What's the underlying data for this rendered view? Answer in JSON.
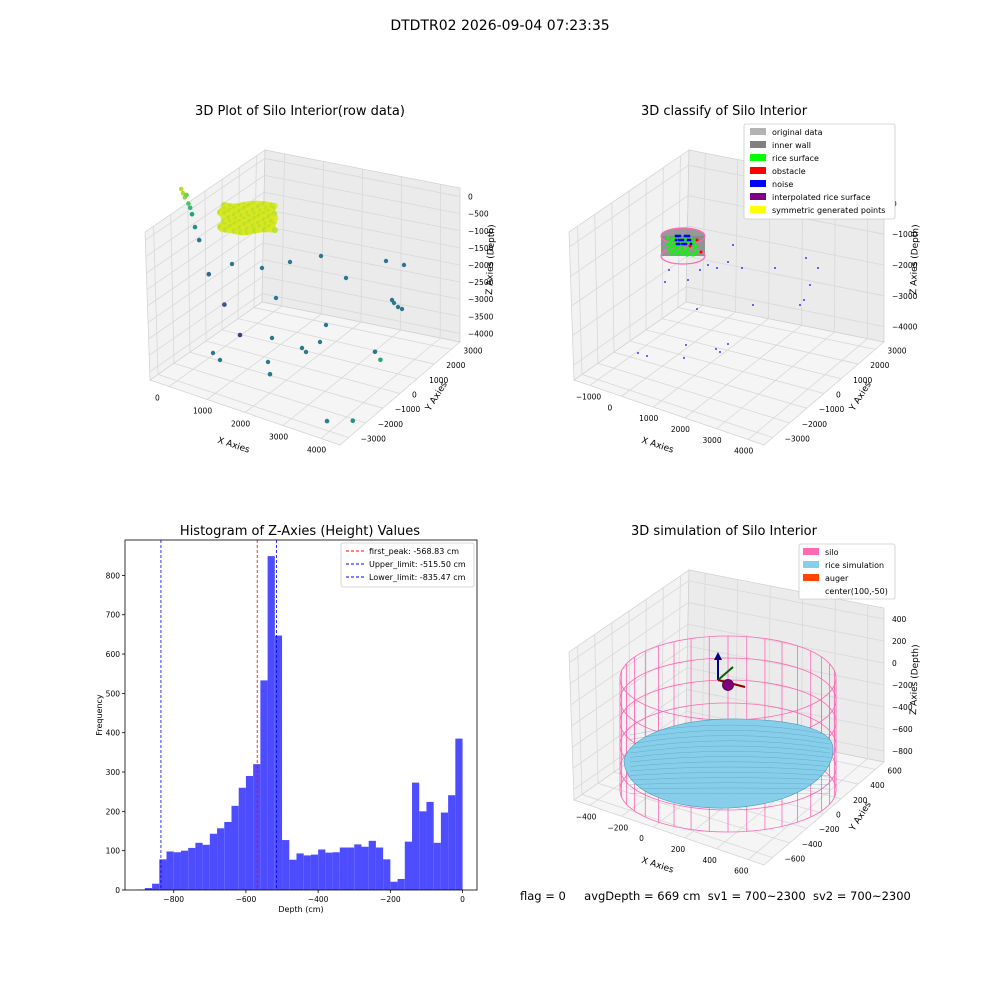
{
  "figure": {
    "title": "DTDTR02 2026-09-04 07:23:35",
    "status": {
      "flag": "flag = 0",
      "avg_depth": "avgDepth = 669 cm",
      "sv1": "sv1 = 700~2300",
      "sv2": "sv2 = 700~2300"
    }
  },
  "raw_plot": {
    "title": "3D Plot of Silo Interior(row data)",
    "xlabel": "X Axies",
    "ylabel": "Y Axies",
    "zlabel": "Z Axies (Depth)",
    "x_ticks": [
      "0",
      "1000",
      "2000",
      "3000",
      "4000"
    ],
    "y_ticks": [
      "−3000",
      "−2000",
      "−1000",
      "0",
      "1000",
      "2000",
      "3000"
    ],
    "z_ticks": [
      "−4000",
      "−3500",
      "−3000",
      "−2500",
      "−2000",
      "−1500",
      "−1000",
      "−500",
      "0"
    ]
  },
  "classify_plot": {
    "title": "3D classify of Silo Interior",
    "xlabel": "X Axies",
    "ylabel": "Y Axies",
    "zlabel": "Z Axies (Depth)",
    "x_ticks": [
      "−1000",
      "0",
      "1000",
      "2000",
      "3000",
      "4000"
    ],
    "y_ticks": [
      "−3000",
      "−2000",
      "−1000",
      "0",
      "1000",
      "2000",
      "3000"
    ],
    "z_ticks": [
      "−4000",
      "−3000",
      "−2000",
      "−1000",
      "0"
    ],
    "legend": [
      {
        "label": "original data",
        "color": "#b3b3b3"
      },
      {
        "label": "inner wall",
        "color": "#808080"
      },
      {
        "label": "rice surface",
        "color": "#00ff00"
      },
      {
        "label": "obstacle",
        "color": "#ff0000"
      },
      {
        "label": "noise",
        "color": "#0000ff"
      },
      {
        "label": "interpolated rice surface",
        "color": "#800080"
      },
      {
        "label": "symmetric generated points",
        "color": "#ffff00"
      }
    ]
  },
  "histogram": {
    "title": "Histogram of Z-Axies (Height) Values",
    "xlabel": "Depth (cm)",
    "ylabel": "Frequency",
    "x_ticks": [
      "−800",
      "−600",
      "−400",
      "−200",
      "0"
    ],
    "y_ticks": [
      "0",
      "100",
      "200",
      "300",
      "400",
      "500",
      "600",
      "700",
      "800"
    ],
    "legend": [
      {
        "label": "first_peak: -568.83 cm",
        "color": "#ff0000"
      },
      {
        "label": "Upper_limit: -515.50 cm",
        "color": "#0000ff"
      },
      {
        "label": "Lower_limit: -835.47 cm",
        "color": "#0000ff"
      }
    ]
  },
  "sim_plot": {
    "title": "3D simulation of Silo Interior",
    "xlabel": "X Axies",
    "ylabel": "Y Axies",
    "zlabel": "Z Axies (Depth)",
    "x_ticks": [
      "−400",
      "−200",
      "0",
      "200",
      "400",
      "600"
    ],
    "y_ticks": [
      "−600",
      "−400",
      "−200",
      "0",
      "200",
      "400",
      "600"
    ],
    "z_ticks": [
      "−800",
      "−600",
      "−400",
      "−200",
      "0",
      "200",
      "400"
    ],
    "legend": [
      {
        "label": "silo",
        "color": "#ff69b4"
      },
      {
        "label": "rice simulation",
        "color": "#87ceeb"
      },
      {
        "label": "auger",
        "color": "#ff4500"
      },
      {
        "label": "center(100,-50)",
        "color": ""
      }
    ]
  },
  "chart_data": [
    {
      "type": "scatter",
      "x": [
        300,
        320,
        340,
        360,
        380,
        400,
        420,
        450,
        500,
        600,
        800,
        1000,
        1400,
        2200,
        2600,
        3100,
        3200
      ],
      "y": [
        2800,
        2700,
        2600,
        2500,
        2400,
        2300,
        2200,
        2000,
        1800,
        1200,
        600,
        0,
        -1000,
        -2500,
        -2800,
        -1500,
        -1400
      ],
      "z": [
        -600,
        -650,
        -700,
        -600,
        -750,
        -800,
        -900,
        -1100,
        -1300,
        -1800,
        -2200,
        -2600,
        -3000,
        -3300,
        -3100,
        -2000,
        -2200
      ]
    },
    {
      "type": "scatter",
      "categories": [
        "original data",
        "inner wall",
        "rice surface",
        "obstacle",
        "noise",
        "interpolated rice surface",
        "symmetric generated points"
      ]
    },
    {
      "type": "bar",
      "x": [
        -900,
        -880,
        -860,
        -840,
        -820,
        -800,
        -780,
        -760,
        -740,
        -720,
        -700,
        -680,
        -660,
        -640,
        -620,
        -600,
        -580,
        -560,
        -540,
        -520,
        -500,
        -480,
        -460,
        -440,
        -420,
        -400,
        -380,
        -360,
        -340,
        -320,
        -300,
        -280,
        -260,
        -240,
        -220,
        -200,
        -180,
        -160,
        -140,
        -120,
        -100,
        -80,
        -60,
        -40,
        -20
      ],
      "values": [
        1,
        5,
        16,
        78,
        98,
        96,
        100,
        107,
        120,
        115,
        143,
        157,
        173,
        214,
        260,
        290,
        320,
        533,
        849,
        647,
        127,
        77,
        93,
        88,
        90,
        103,
        95,
        96,
        108,
        108,
        116,
        110,
        125,
        108,
        78,
        21,
        28,
        123,
        273,
        200,
        224,
        120,
        197,
        241,
        385
      ],
      "bin_width": 20,
      "xlim": [
        -935,
        40
      ],
      "ylim": [
        0,
        890
      ],
      "vlines": [
        -568.83,
        -515.5,
        -835.47
      ]
    },
    {
      "type": "surface",
      "center": [
        100,
        -50
      ]
    }
  ]
}
